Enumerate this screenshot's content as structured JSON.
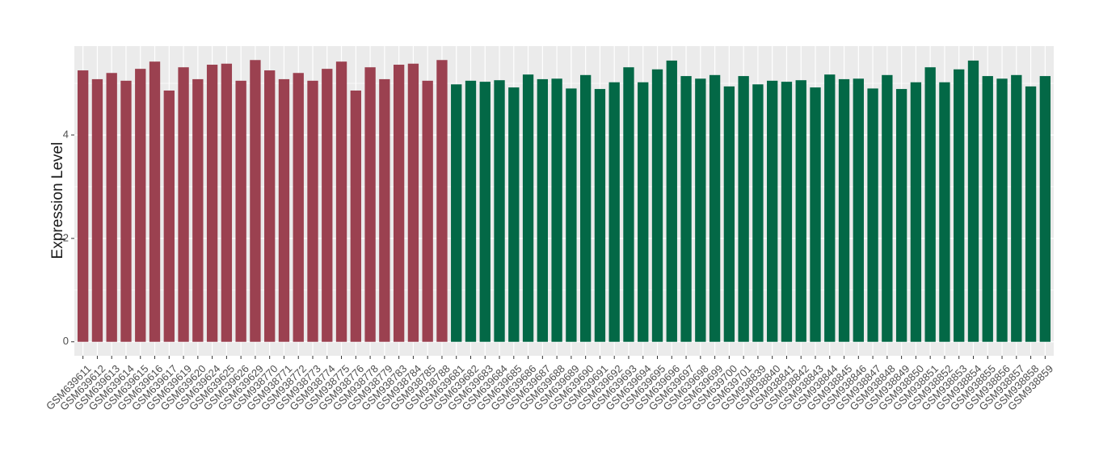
{
  "chart_data": {
    "type": "bar",
    "y_label": "Expression Level",
    "categories": [
      "GSM639611",
      "GSM639612",
      "GSM639613",
      "GSM639614",
      "GSM639615",
      "GSM639616",
      "GSM639617",
      "GSM639619",
      "GSM639620",
      "GSM639624",
      "GSM639625",
      "GSM639626",
      "GSM639629",
      "GSM938770",
      "GSM938771",
      "GSM938772",
      "GSM938773",
      "GSM938774",
      "GSM938775",
      "GSM938776",
      "GSM938778",
      "GSM938779",
      "GSM938783",
      "GSM938784",
      "GSM938785",
      "GSM938788",
      "GSM639681",
      "GSM639682",
      "GSM639683",
      "GSM639684",
      "GSM639685",
      "GSM639686",
      "GSM639687",
      "GSM639688",
      "GSM639689",
      "GSM639690",
      "GSM639691",
      "GSM639692",
      "GSM639693",
      "GSM639694",
      "GSM639695",
      "GSM639696",
      "GSM639697",
      "GSM639698",
      "GSM639699",
      "GSM639700",
      "GSM639701",
      "GSM938839",
      "GSM938840",
      "GSM938841",
      "GSM938842",
      "GSM938843",
      "GSM938844",
      "GSM938845",
      "GSM938846",
      "GSM938847",
      "GSM938848",
      "GSM938849",
      "GSM938850",
      "GSM938851",
      "GSM938852",
      "GSM938853",
      "GSM938854",
      "GSM938855",
      "GSM938856",
      "GSM938857",
      "GSM938858",
      "GSM938859"
    ],
    "values": [
      5.25,
      5.08,
      5.2,
      5.05,
      5.28,
      5.42,
      4.86,
      5.31,
      5.08,
      5.36,
      5.38,
      5.05,
      5.45,
      5.25,
      5.08,
      5.2,
      5.05,
      5.28,
      5.42,
      4.86,
      5.31,
      5.08,
      5.36,
      5.38,
      5.05,
      5.45,
      4.98,
      5.05,
      5.03,
      5.06,
      4.92,
      5.17,
      5.08,
      5.09,
      4.9,
      5.16,
      4.89,
      5.02,
      5.31,
      5.02,
      5.27,
      5.44,
      5.14,
      5.09,
      5.16,
      4.94,
      5.14,
      4.98,
      5.05,
      5.03,
      5.06,
      4.92,
      5.17,
      5.08,
      5.09,
      4.9,
      5.16,
      4.89,
      5.02,
      5.31,
      5.02,
      5.27,
      5.44,
      5.14,
      5.09,
      5.16,
      4.94,
      5.14
    ],
    "colors": [
      "#9b4150",
      "#9b4150",
      "#9b4150",
      "#9b4150",
      "#9b4150",
      "#9b4150",
      "#9b4150",
      "#9b4150",
      "#9b4150",
      "#9b4150",
      "#9b4150",
      "#9b4150",
      "#9b4150",
      "#9b4150",
      "#9b4150",
      "#9b4150",
      "#9b4150",
      "#9b4150",
      "#9b4150",
      "#9b4150",
      "#9b4150",
      "#9b4150",
      "#9b4150",
      "#9b4150",
      "#9b4150",
      "#9b4150",
      "#036846",
      "#036846",
      "#036846",
      "#036846",
      "#036846",
      "#036846",
      "#036846",
      "#036846",
      "#036846",
      "#036846",
      "#036846",
      "#036846",
      "#036846",
      "#036846",
      "#036846",
      "#036846",
      "#036846",
      "#036846",
      "#036846",
      "#036846",
      "#036846",
      "#036846",
      "#036846",
      "#036846",
      "#036846",
      "#036846",
      "#036846",
      "#036846",
      "#036846",
      "#036846",
      "#036846",
      "#036846",
      "#036846",
      "#036846",
      "#036846",
      "#036846",
      "#036846",
      "#036846",
      "#036846",
      "#036846",
      "#036846",
      "#036846"
    ],
    "ylim": [
      -0.27,
      5.72
    ],
    "yticks": [
      0,
      2,
      4
    ],
    "grid": true
  }
}
